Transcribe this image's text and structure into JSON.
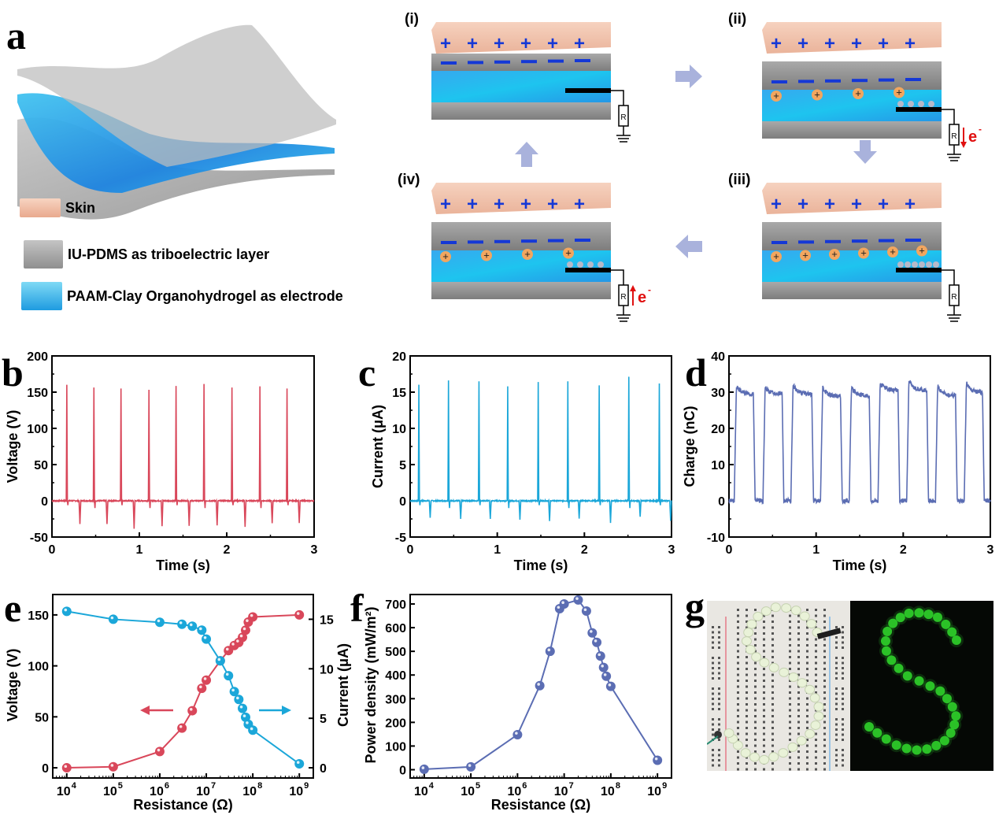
{
  "panels": {
    "a": {
      "letter": "a",
      "legend": [
        {
          "label": "Skin",
          "color": "#f0c2a8",
          "icon": "skin-block-icon"
        },
        {
          "label": "IU-PDMS as triboelectric layer",
          "color": "#a8a8a8",
          "icon": "pdms-block-icon"
        },
        {
          "label": "PAAM-Clay Organohydrogel as electrode",
          "color": "#2fb6ec",
          "icon": "hydrogel-block-icon"
        }
      ],
      "steps": [
        {
          "label": "(i)",
          "skin_charges": [
            "+",
            "+",
            "+",
            "+",
            "+",
            "+"
          ],
          "pdms_charges": [
            "−",
            "−",
            "−",
            "−",
            "−",
            "−"
          ],
          "ions": 0,
          "electron_flow": ""
        },
        {
          "label": "(ii)",
          "skin_charges": [
            "+",
            "+",
            "+",
            "+",
            "+",
            "+"
          ],
          "pdms_charges": [
            "−",
            "−",
            "−",
            "−",
            "−",
            "−"
          ],
          "ions": 4,
          "electron_flow": "down"
        },
        {
          "label": "(iii)",
          "skin_charges": [
            "+",
            "+",
            "+",
            "+",
            "+",
            "+"
          ],
          "pdms_charges": [
            "−",
            "−",
            "−",
            "−",
            "−",
            "−"
          ],
          "ions": 6,
          "electron_flow": ""
        },
        {
          "label": "(iv)",
          "skin_charges": [
            "+",
            "+",
            "+",
            "+",
            "+",
            "+"
          ],
          "pdms_charges": [
            "−",
            "−",
            "−",
            "−",
            "−",
            "−"
          ],
          "ions": 4,
          "electron_flow": "up"
        }
      ],
      "resistor_label": "R",
      "electron_label": "e",
      "electron_sup": "-"
    },
    "b": {
      "letter": "b"
    },
    "c": {
      "letter": "c"
    },
    "d": {
      "letter": "d"
    },
    "e": {
      "letter": "e"
    },
    "f": {
      "letter": "f"
    },
    "g": {
      "letter": "g",
      "photo_left": "LEDs on breadboard arranged in S shape (lights off)",
      "photo_right": "Green LEDs lit forming letter S"
    }
  },
  "chart_data": [
    {
      "id": "b",
      "type": "line",
      "title": "",
      "xlabel": "Time (s)",
      "ylabel": "Voltage (V)",
      "xlim": [
        0,
        3
      ],
      "ylim": [
        -50,
        200
      ],
      "xticks": [
        "0",
        "1",
        "2",
        "3"
      ],
      "yticks": [
        "-50",
        "0",
        "50",
        "100",
        "150",
        "200"
      ],
      "color": "#d9475a",
      "pulses": {
        "peak_times": [
          0.17,
          0.48,
          0.79,
          1.11,
          1.42,
          1.74,
          2.06,
          2.38,
          2.69
        ],
        "peak_values": [
          160,
          156,
          155,
          153,
          158,
          161,
          156,
          158,
          155
        ],
        "neg_times": [
          0.32,
          0.63,
          0.94,
          1.26,
          1.57,
          1.89,
          2.21,
          2.52,
          2.83
        ],
        "neg_values": [
          -32,
          -32,
          -38,
          -35,
          -34,
          -34,
          -36,
          -31,
          -30
        ]
      }
    },
    {
      "id": "c",
      "type": "line",
      "title": "",
      "xlabel": "Time (s)",
      "ylabel": "Current (μA)",
      "xlim": [
        0,
        3
      ],
      "ylim": [
        -5,
        20
      ],
      "xticks": [
        "0",
        "1",
        "2",
        "3"
      ],
      "yticks": [
        "-5",
        "0",
        "5",
        "10",
        "15",
        "20"
      ],
      "color": "#1ba7d9",
      "pulses": {
        "peak_times": [
          0.1,
          0.44,
          0.79,
          1.12,
          1.47,
          1.81,
          2.17,
          2.51,
          2.86
        ],
        "peak_values": [
          16.0,
          16.6,
          16.5,
          15.8,
          16.4,
          16.5,
          15.9,
          17.1,
          16.2
        ],
        "neg_times": [
          0.23,
          0.58,
          0.92,
          1.26,
          1.6,
          1.94,
          2.3,
          2.64,
          2.99
        ],
        "neg_values": [
          -2.3,
          -2.5,
          -2.5,
          -2.6,
          -2.8,
          -2.4,
          -3.0,
          -2.2,
          -2.7
        ]
      }
    },
    {
      "id": "d",
      "type": "line",
      "title": "",
      "xlabel": "Time (s)",
      "ylabel": "Charge (nC)",
      "xlim": [
        0,
        3
      ],
      "ylim": [
        -10,
        40
      ],
      "xticks": [
        "0",
        "1",
        "2",
        "3"
      ],
      "yticks": [
        "-10",
        "0",
        "10",
        "20",
        "30",
        "40"
      ],
      "color": "#5b6db3",
      "pulses": {
        "rise_times": [
          0.06,
          0.39,
          0.71,
          1.05,
          1.38,
          1.71,
          2.04,
          2.37,
          2.7
        ],
        "fall_times": [
          0.3,
          0.63,
          0.97,
          1.3,
          1.63,
          1.96,
          2.29,
          2.62,
          2.93
        ],
        "plateau_values": [
          29.5,
          29.5,
          29.5,
          28.8,
          29.0,
          30.5,
          30.5,
          29.0,
          29.8
        ],
        "peak_values": [
          31.5,
          31.3,
          31.8,
          31.2,
          31.0,
          32.5,
          33.0,
          31.5,
          32.3
        ],
        "baseline": 0
      }
    },
    {
      "id": "e",
      "type": "line",
      "title": "",
      "xlabel": "Resistance (Ω)",
      "ylabel": "Voltage (V)",
      "ylabel_right": "Current (μA)",
      "xscale": "log",
      "xlim": [
        5000,
        2000000000
      ],
      "ylim": [
        -10,
        170
      ],
      "ylim_right": [
        -1.03,
        17.5
      ],
      "xticks": [
        "10^4",
        "10^5",
        "10^6",
        "10^7",
        "10^8",
        "10^9"
      ],
      "yticks": [
        "0",
        "50",
        "100",
        "150"
      ],
      "yticks_right": [
        "0",
        "5",
        "10",
        "15"
      ],
      "x": [
        10000,
        100000,
        1000000,
        3000000,
        5000000,
        8000000,
        10000000,
        20000000,
        30000000,
        40000000,
        50000000,
        60000000,
        70000000,
        80000000,
        100000000,
        1000000000
      ],
      "series": [
        {
          "name": "Voltage",
          "axis": "left",
          "color": "#d9475a",
          "values": [
            0,
            1,
            16,
            39,
            56,
            78,
            86,
            105,
            115,
            120,
            123,
            128,
            135,
            143,
            148,
            150
          ]
        },
        {
          "name": "Current",
          "axis": "right",
          "color": "#1ba7d9",
          "values": [
            15.8,
            15.0,
            14.7,
            14.5,
            14.3,
            13.9,
            13.0,
            10.8,
            9.3,
            7.7,
            6.9,
            6.0,
            5.1,
            4.4,
            3.8,
            0.4
          ]
        }
      ],
      "annotations": [
        {
          "text": "←",
          "refers_to": "Voltage",
          "color": "#d9475a"
        },
        {
          "text": "→",
          "refers_to": "Current",
          "color": "#1ba7d9"
        }
      ]
    },
    {
      "id": "f",
      "type": "line",
      "title": "",
      "xlabel": "Resistance (Ω)",
      "ylabel": "Power density (mW/m²)",
      "xscale": "log",
      "xlim": [
        5000,
        2000000000
      ],
      "ylim": [
        -35,
        740
      ],
      "xticks": [
        "10^4",
        "10^5",
        "10^6",
        "10^7",
        "10^8",
        "10^9"
      ],
      "yticks": [
        "0",
        "100",
        "200",
        "300",
        "400",
        "500",
        "600",
        "700"
      ],
      "x": [
        10000,
        100000,
        1000000,
        3000000,
        5000000,
        8000000,
        10000000,
        20000000,
        30000000,
        40000000,
        50000000,
        60000000,
        70000000,
        80000000,
        100000000,
        1000000000
      ],
      "series": [
        {
          "name": "Power density",
          "color": "#5b6db3",
          "values": [
            2,
            12,
            148,
            355,
            500,
            680,
            700,
            717,
            670,
            578,
            538,
            480,
            432,
            395,
            352,
            40
          ]
        }
      ]
    }
  ]
}
